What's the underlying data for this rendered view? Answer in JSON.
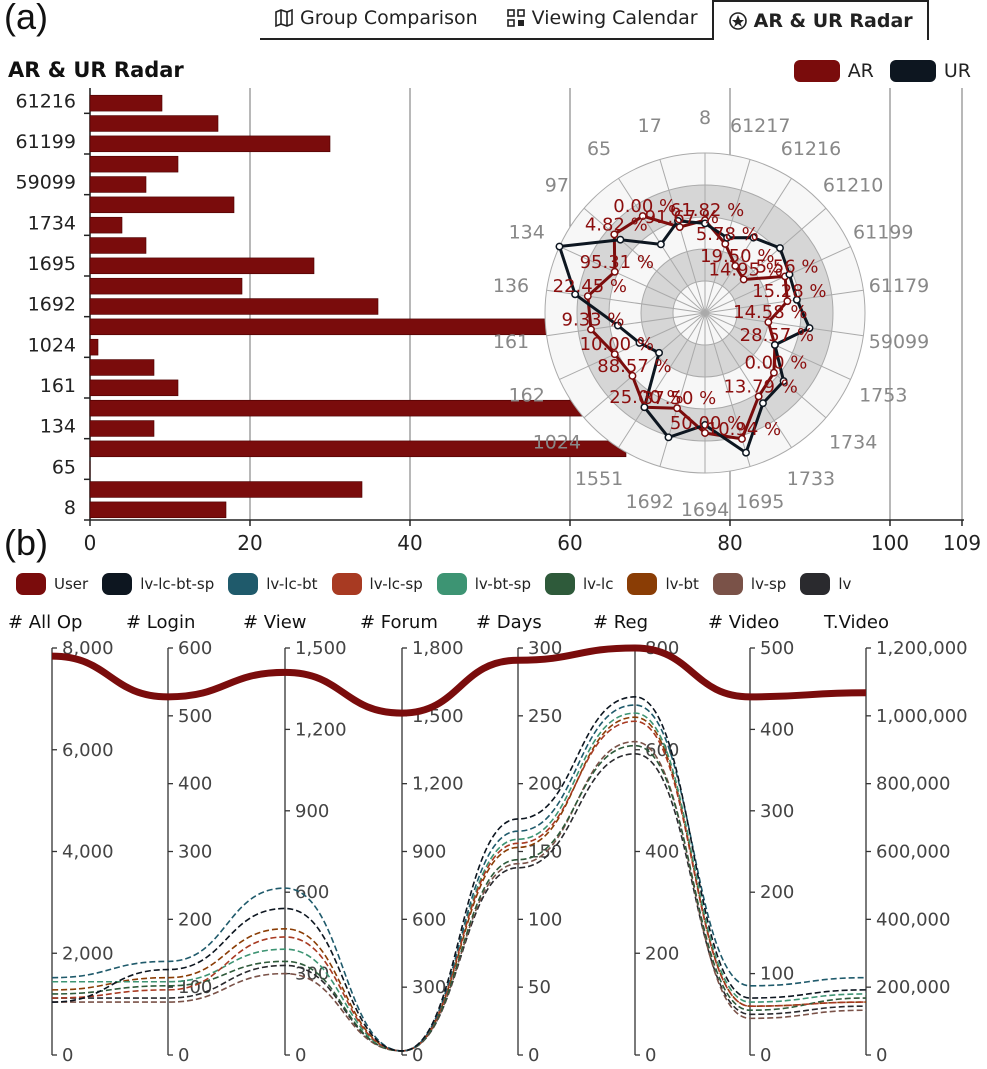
{
  "panel_labels": {
    "a": "(a)",
    "b": "(b)"
  },
  "tabs": [
    {
      "label": "Group Comparison",
      "icon": "map-icon",
      "active": false
    },
    {
      "label": "Viewing Calendar",
      "icon": "calendar-grid-icon",
      "active": false
    },
    {
      "label": "AR & UR Radar",
      "icon": "radar-icon",
      "active": true
    }
  ],
  "colors": {
    "ar": "#7a0c0c",
    "ur": "#0d1620",
    "grid": "#888888",
    "radar_ring": "#cccccc"
  },
  "chart_data": [
    {
      "type": "bar",
      "title": "AR & UR Radar",
      "legend": [
        {
          "name": "AR",
          "color": "#7a0c0c"
        },
        {
          "name": "UR",
          "color": "#0d1620"
        }
      ],
      "legend_placement": "top-right",
      "orientation": "horizontal",
      "ytick_labels": [
        "61216",
        "61199",
        "59099",
        "1734",
        "1695",
        "1692",
        "1024",
        "161",
        "134",
        "65",
        "8"
      ],
      "values": [
        9,
        16,
        30,
        11,
        7,
        18,
        4,
        7,
        28,
        19,
        36,
        63,
        1,
        8,
        11,
        62,
        8,
        67,
        0,
        34,
        17
      ],
      "xticks": [
        0,
        20,
        40,
        60,
        80,
        100,
        109
      ],
      "xlim": [
        0,
        109
      ],
      "grid": true
    },
    {
      "type": "radar",
      "axes": [
        "8",
        "61217",
        "61216",
        "61210",
        "61199",
        "61179",
        "59099",
        "1753",
        "1734",
        "1733",
        "1695",
        "1694",
        "1692",
        "1551",
        "1024",
        "162",
        "161",
        "136",
        "134",
        "97",
        "65",
        "17"
      ],
      "series": [
        {
          "name": "AR",
          "color": "#7a0c0c",
          "values": [
            0.58,
            0.45,
            0.35,
            0.32,
            0.55,
            0.52,
            0.4,
            0.48,
            0.57,
            0.62,
            0.82,
            0.75,
            0.62,
            0.7,
            0.6,
            0.62,
            0.72,
            0.74,
            0.62,
            0.75,
            0.72,
            0.56
          ]
        },
        {
          "name": "UR",
          "color": "#0d1620",
          "values": [
            0.56,
            0.49,
            0.56,
            0.62,
            0.58,
            0.58,
            0.66,
            0.48,
            0.65,
            0.67,
            0.91,
            0.7,
            0.81,
            0.7,
            0.38,
            0.45,
            0.55,
            0.82,
            1.0,
            0.7,
            0.51,
            0.6
          ]
        }
      ],
      "labels": [
        "61.82 %",
        "5.78 %",
        "19.50 %",
        "14.95 %",
        "5.56 %",
        "15.28 %",
        "14.58 %",
        "28.57 %",
        "0.00 %",
        "13.79 %",
        "10.94 %",
        "50.00 %",
        "37.50 %",
        "25.00 %",
        "88.57 %",
        "10.00 %",
        "9.33 %",
        "22.45 %",
        "95.31 %",
        "4.82 %",
        "0.00 %",
        "91.67 %"
      ],
      "ring_bands": 5
    },
    {
      "type": "parallel-coordinates",
      "legend": [
        {
          "name": "User",
          "color": "#7a0c0c"
        },
        {
          "name": "lv-lc-bt-sp",
          "color": "#0d1620"
        },
        {
          "name": "lv-lc-bt",
          "color": "#1f5a6b"
        },
        {
          "name": "lv-lc-sp",
          "color": "#a83a22"
        },
        {
          "name": "lv-bt-sp",
          "color": "#3d9473"
        },
        {
          "name": "lv-lc",
          "color": "#2e5a3a"
        },
        {
          "name": "lv-bt",
          "color": "#8a3d05"
        },
        {
          "name": "lv-sp",
          "color": "#7a5248"
        },
        {
          "name": "lv",
          "color": "#2a2a2e"
        }
      ],
      "axes": [
        {
          "name": "# All Op",
          "max": 8000,
          "ticks": [
            "0",
            "2,000",
            "4,000",
            "6,000",
            "8,000"
          ]
        },
        {
          "name": "# Login",
          "max": 600,
          "ticks": [
            "0",
            "100",
            "200",
            "300",
            "400",
            "500",
            "600"
          ]
        },
        {
          "name": "# View",
          "max": 1500,
          "ticks": [
            "0",
            "300",
            "600",
            "900",
            "1,200",
            "1,500"
          ]
        },
        {
          "name": "# Forum",
          "max": 1800,
          "ticks": [
            "0",
            "300",
            "600",
            "900",
            "1,200",
            "1,500",
            "1,800"
          ]
        },
        {
          "name": "# Days",
          "max": 300,
          "ticks": [
            "0",
            "50",
            "100",
            "150",
            "200",
            "250",
            "300"
          ]
        },
        {
          "name": "# Reg",
          "max": 800,
          "ticks": [
            "0",
            "200",
            "400",
            "600",
            "800"
          ]
        },
        {
          "name": "# Video",
          "max": 500,
          "ticks": [
            "0",
            "100",
            "200",
            "300",
            "400",
            "500"
          ]
        },
        {
          "name": "T.Video",
          "max": 1200000,
          "ticks": [
            "0",
            "200,000",
            "400,000",
            "600,000",
            "800,000",
            "1,000,000",
            "1,200,000"
          ]
        }
      ],
      "series": [
        {
          "name": "User",
          "values": [
            0.98,
            0.88,
            0.94,
            0.84,
            0.97,
            1.0,
            0.88,
            0.89
          ]
        },
        {
          "name": "lv-lc-bt-sp",
          "values": [
            0.13,
            0.21,
            0.36,
            0.01,
            0.58,
            0.88,
            0.14,
            0.16
          ]
        },
        {
          "name": "lv-lc-bt",
          "values": [
            0.19,
            0.23,
            0.41,
            0.01,
            0.55,
            0.86,
            0.17,
            0.19
          ]
        },
        {
          "name": "lv-lc-sp",
          "values": [
            0.14,
            0.16,
            0.29,
            0.01,
            0.52,
            0.82,
            0.12,
            0.13
          ]
        },
        {
          "name": "lv-bt-sp",
          "values": [
            0.18,
            0.18,
            0.26,
            0.01,
            0.53,
            0.84,
            0.13,
            0.15
          ]
        },
        {
          "name": "lv-lc",
          "values": [
            0.15,
            0.17,
            0.23,
            0.01,
            0.48,
            0.76,
            0.11,
            0.14
          ]
        },
        {
          "name": "lv-bt",
          "values": [
            0.16,
            0.19,
            0.31,
            0.01,
            0.51,
            0.83,
            0.12,
            0.13
          ]
        },
        {
          "name": "lv-sp",
          "values": [
            0.13,
            0.13,
            0.2,
            0.01,
            0.47,
            0.77,
            0.09,
            0.11
          ]
        },
        {
          "name": "lv",
          "values": [
            0.14,
            0.14,
            0.22,
            0.01,
            0.46,
            0.74,
            0.1,
            0.12
          ]
        }
      ]
    }
  ]
}
